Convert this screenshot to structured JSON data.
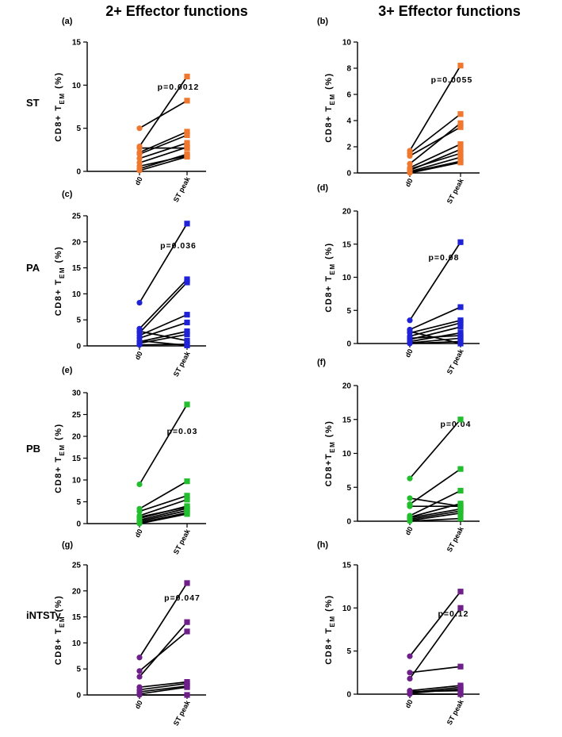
{
  "figure": {
    "column_titles": [
      "2+ Effector functions",
      "3+ Effector functions"
    ],
    "row_labels": [
      "ST",
      "PA",
      "PB",
      "iNTSTy"
    ]
  },
  "chart_data": [
    {
      "panel": "(a)",
      "type": "line",
      "condition": "ST",
      "column": "2+ Effector functions",
      "color": "#F0772E",
      "marker": "orange",
      "title": "",
      "xlabel": "",
      "ylabel": "CD8+ T_EM (%)",
      "categories": [
        "d0",
        "ST peak"
      ],
      "ylim": [
        0,
        15
      ],
      "yticks": [
        0,
        5,
        10,
        15
      ],
      "pvalue": "p=0.0012",
      "series": [
        [
          5.0,
          8.2
        ],
        [
          2.9,
          11.0
        ],
        [
          2.7,
          2.7
        ],
        [
          2.2,
          4.6
        ],
        [
          2.0,
          4.2
        ],
        [
          1.5,
          3.3
        ],
        [
          1.0,
          2.8
        ],
        [
          0.6,
          1.8
        ],
        [
          0.3,
          2.0
        ],
        [
          0.1,
          1.7
        ]
      ]
    },
    {
      "panel": "(b)",
      "type": "line",
      "condition": "ST",
      "column": "3+ Effector functions",
      "color": "#F0772E",
      "marker": "orange",
      "title": "",
      "xlabel": "",
      "ylabel": "CD8+ T_EM (%)",
      "categories": [
        "d0",
        "ST peak"
      ],
      "ylim": [
        0,
        10
      ],
      "yticks": [
        0,
        2,
        4,
        6,
        8,
        10
      ],
      "pvalue": "p=0.0055",
      "series": [
        [
          1.7,
          8.2
        ],
        [
          1.5,
          4.5
        ],
        [
          1.3,
          3.5
        ],
        [
          0.7,
          3.8
        ],
        [
          0.4,
          2.2
        ],
        [
          0.2,
          1.8
        ],
        [
          0.1,
          1.2
        ],
        [
          0.05,
          0.9
        ],
        [
          0.0,
          0.8
        ],
        [
          0.3,
          1.5
        ]
      ]
    },
    {
      "panel": "(c)",
      "type": "line",
      "condition": "PA",
      "column": "2+ Effector functions",
      "color": "#1F22D6",
      "marker": "blue",
      "title": "",
      "xlabel": "",
      "ylabel": "CD8+ T_EM (%)",
      "categories": [
        "d0",
        "ST peak"
      ],
      "ylim": [
        0,
        25
      ],
      "yticks": [
        0,
        5,
        10,
        15,
        20,
        25
      ],
      "pvalue": "p=0.036",
      "series": [
        [
          8.3,
          23.5
        ],
        [
          3.3,
          12.8
        ],
        [
          2.5,
          12.2
        ],
        [
          2.0,
          6.0
        ],
        [
          1.5,
          4.5
        ],
        [
          0.8,
          2.8
        ],
        [
          0.5,
          2.2
        ],
        [
          2.8,
          1.0
        ],
        [
          0.2,
          0.3
        ],
        [
          1.0,
          0.1
        ]
      ]
    },
    {
      "panel": "(d)",
      "type": "line",
      "condition": "PA",
      "column": "3+ Effector functions",
      "color": "#1F22D6",
      "marker": "blue",
      "title": "",
      "xlabel": "",
      "ylabel": "CD8+ T_EM (%)",
      "categories": [
        "d0",
        "ST peak"
      ],
      "ylim": [
        0,
        20
      ],
      "yticks": [
        0,
        5,
        10,
        15,
        20
      ],
      "pvalue": "p=0.08",
      "series": [
        [
          3.5,
          15.3
        ],
        [
          2.1,
          5.5
        ],
        [
          1.6,
          3.5
        ],
        [
          1.1,
          3.1
        ],
        [
          0.6,
          2.5
        ],
        [
          0.3,
          1.6
        ],
        [
          0.1,
          0.8
        ],
        [
          0.0,
          0.3
        ],
        [
          1.8,
          0.0
        ],
        [
          0.8,
          1.2
        ]
      ]
    },
    {
      "panel": "(e)",
      "type": "line",
      "condition": "PB",
      "column": "2+ Effector functions",
      "color": "#22BE2E",
      "marker": "green",
      "title": "",
      "xlabel": "",
      "ylabel": "CD8+ T_EM (%)",
      "categories": [
        "d0",
        "ST peak"
      ],
      "ylim": [
        0,
        30
      ],
      "yticks": [
        0,
        5,
        10,
        15,
        20,
        25,
        30
      ],
      "pvalue": "p=0.03",
      "series": [
        [
          9.0,
          27.3
        ],
        [
          3.4,
          9.7
        ],
        [
          2.8,
          6.4
        ],
        [
          1.8,
          5.5
        ],
        [
          1.2,
          4.0
        ],
        [
          0.8,
          3.5
        ],
        [
          0.5,
          3.0
        ],
        [
          0.2,
          2.5
        ],
        [
          0.0,
          2.2
        ],
        [
          1.5,
          3.8
        ]
      ]
    },
    {
      "panel": "(f)",
      "type": "line",
      "condition": "PB",
      "column": "3+ Effector functions",
      "color": "#22BE2E",
      "marker": "green",
      "title": "",
      "xlabel": "",
      "ylabel": "CD8+T_EM (%)",
      "categories": [
        "d0",
        "ST peak"
      ],
      "ylim": [
        0,
        20
      ],
      "yticks": [
        0,
        5,
        10,
        15,
        20
      ],
      "pvalue": "p=0.04",
      "series": [
        [
          6.3,
          15.0
        ],
        [
          3.4,
          2.2
        ],
        [
          2.5,
          7.7
        ],
        [
          2.2,
          2.2
        ],
        [
          0.8,
          4.5
        ],
        [
          0.5,
          1.8
        ],
        [
          0.3,
          1.5
        ],
        [
          0.1,
          1.2
        ],
        [
          0.0,
          0.4
        ],
        [
          0.6,
          2.6
        ]
      ]
    },
    {
      "panel": "(g)",
      "type": "line",
      "condition": "iNTSTy",
      "column": "2+ Effector functions",
      "color": "#6E1F8A",
      "marker": "purple",
      "title": "",
      "xlabel": "",
      "ylabel": "CD8+ T_EM (%)",
      "categories": [
        "d0",
        "ST peak"
      ],
      "ylim": [
        0,
        25
      ],
      "yticks": [
        0,
        5,
        10,
        15,
        20,
        25
      ],
      "pvalue": "p=0.047",
      "series": [
        [
          7.2,
          21.5
        ],
        [
          4.6,
          12.2
        ],
        [
          3.5,
          14.0
        ],
        [
          1.5,
          2.5
        ],
        [
          1.0,
          2.2
        ],
        [
          0.6,
          1.7
        ],
        [
          0.2,
          1.5
        ],
        [
          0.0,
          0.0
        ]
      ]
    },
    {
      "panel": "(h)",
      "type": "line",
      "condition": "iNTSTy",
      "column": "3+ Effector functions",
      "color": "#6E1F8A",
      "marker": "purple",
      "title": "",
      "xlabel": "",
      "ylabel": "CD8+ T_EM (%)",
      "categories": [
        "d0",
        "ST peak"
      ],
      "ylim": [
        0,
        15
      ],
      "yticks": [
        0,
        5,
        10,
        15
      ],
      "pvalue": "p=0.12",
      "series": [
        [
          4.4,
          11.9
        ],
        [
          2.5,
          3.2
        ],
        [
          1.8,
          10.0
        ],
        [
          0.4,
          1.0
        ],
        [
          0.2,
          0.8
        ],
        [
          0.1,
          0.6
        ],
        [
          0.0,
          0.0
        ],
        [
          0.3,
          0.4
        ]
      ]
    }
  ]
}
